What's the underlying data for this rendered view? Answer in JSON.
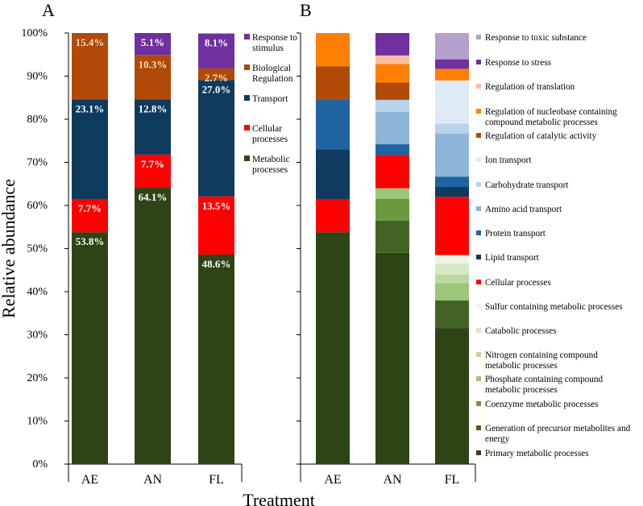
{
  "chart_data": [
    {
      "panel_label": "A",
      "type": "bar",
      "stacked": true,
      "categories": [
        "AE",
        "AN",
        "FL"
      ],
      "xlabel": "Treatment",
      "ylabel": "Relative abundance",
      "ylim": [
        0,
        100
      ],
      "yticks": [
        "0%",
        "10%",
        "20%",
        "30%",
        "40%",
        "50%",
        "60%",
        "70%",
        "80%",
        "90%",
        "100%"
      ],
      "legend_position": "right",
      "series": [
        {
          "name": "Metabolic processes",
          "color": "#2e4417",
          "values": [
            53.8,
            64.1,
            48.6
          ],
          "labels": [
            "53.8%",
            "64.1%",
            "48.6%"
          ]
        },
        {
          "name": "Cellular processes",
          "color": "#ff0000",
          "values": [
            7.7,
            7.7,
            13.5
          ],
          "labels": [
            "7.7%",
            "7.7%",
            "13.5%"
          ]
        },
        {
          "name": "Transport",
          "color": "#0e3a5e",
          "values": [
            23.1,
            12.8,
            27.0
          ],
          "labels": [
            "23.1%",
            "12.8%",
            "27.0%"
          ]
        },
        {
          "name": "Biological Regulation",
          "color": "#b04a06",
          "values": [
            15.4,
            10.3,
            2.7
          ],
          "labels": [
            "15.4%",
            "10.3%",
            "2.7%"
          ]
        },
        {
          "name": "Response to stimulus",
          "color": "#7030a0",
          "values": [
            0,
            5.1,
            8.1
          ],
          "labels": [
            "",
            "5.1%",
            "8.1%"
          ]
        }
      ],
      "legend": [
        {
          "name": "Response to stimulus",
          "color": "#7030a0"
        },
        {
          "name": "Biological Regulation",
          "color": "#b04a06"
        },
        {
          "name": "Transport",
          "color": "#0e3a5e"
        },
        {
          "name": "Cellular processes",
          "color": "#ff0000"
        },
        {
          "name": "Metabolic processes",
          "color": "#2e4417"
        }
      ]
    },
    {
      "panel_label": "B",
      "type": "bar",
      "stacked": true,
      "categories": [
        "AE",
        "AN",
        "FL"
      ],
      "xlabel": "",
      "ylabel": "",
      "ylim": [
        0,
        100
      ],
      "legend_position": "right",
      "series": [
        {
          "name": "Primary metabolic processes",
          "color": "#2e4417",
          "values": [
            53.8,
            49.0,
            31.5
          ]
        },
        {
          "name": "Generation of precursor metabolites and energy",
          "color": "#436324",
          "values": [
            0,
            7.5,
            6.5
          ]
        },
        {
          "name": "Coenzyme metabolic processes",
          "color": "#6a9a3c",
          "values": [
            0,
            5.0,
            0
          ]
        },
        {
          "name": "Phosphate containing compound metabolic processes",
          "color": "#9bc77a",
          "values": [
            0,
            2.5,
            4.0
          ]
        },
        {
          "name": "Nitrogen containing compound metabolic processes",
          "color": "#b9d9a0",
          "values": [
            0,
            0,
            2.0
          ]
        },
        {
          "name": "Catabolic processes",
          "color": "#d7e8c4",
          "values": [
            0,
            0,
            2.5
          ]
        },
        {
          "name": "Sulfur containing metabolic processes",
          "color": "#eef4e6",
          "values": [
            0,
            0,
            2.0
          ]
        },
        {
          "name": "Cellular processes",
          "color": "#ff0000",
          "values": [
            7.7,
            7.7,
            13.5
          ]
        },
        {
          "name": "Lipid transport",
          "color": "#103a60",
          "values": [
            11.5,
            0,
            2.3
          ]
        },
        {
          "name": "Protein transport",
          "color": "#1f64a0",
          "values": [
            11.6,
            2.5,
            2.4
          ]
        },
        {
          "name": "Amino acid transport",
          "color": "#8eb5da",
          "values": [
            0,
            7.5,
            10.0
          ]
        },
        {
          "name": "Carbohydrate transport",
          "color": "#b9d3ec",
          "values": [
            0,
            2.8,
            2.3
          ]
        },
        {
          "name": "Ion transport",
          "color": "#dfeaf7",
          "values": [
            0,
            0,
            10.0
          ]
        },
        {
          "name": "Regulation of catalytic activity",
          "color": "#b04a06",
          "values": [
            7.7,
            4.0,
            0
          ]
        },
        {
          "name": "Regulation of nucleobase containing compound metabolic processes",
          "color": "#ff7f00",
          "values": [
            7.7,
            4.3,
            2.7
          ]
        },
        {
          "name": "Regulation of translation",
          "color": "#fbbf9d",
          "values": [
            0,
            2.0,
            0
          ]
        },
        {
          "name": "Response to stress",
          "color": "#7030a0",
          "values": [
            0,
            5.2,
            2.2
          ]
        },
        {
          "name": "Response to toxic substance",
          "color": "#b4a1cb",
          "values": [
            0,
            0,
            6.1
          ]
        }
      ],
      "legend": [
        {
          "name": "Response to toxic substance",
          "color": "#b4a1cb"
        },
        {
          "name": "Response to stress",
          "color": "#7030a0"
        },
        {
          "name": "Regulation of translation",
          "color": "#fbbf9d"
        },
        {
          "name": "Regulation of nucleobase containing compound metabolic processes",
          "color": "#ff7f00"
        },
        {
          "name": "Regulation of catalytic activity",
          "color": "#b04a06"
        },
        {
          "name": "Ion transport",
          "color": "#dfeaf7"
        },
        {
          "name": "Carbohydrate transport",
          "color": "#b9d3ec"
        },
        {
          "name": "Amino acid transport",
          "color": "#8eb5da"
        },
        {
          "name": "Protein transport",
          "color": "#1f64a0"
        },
        {
          "name": "Lipid transport",
          "color": "#103a60"
        },
        {
          "name": "Cellular processes",
          "color": "#ff0000"
        },
        {
          "name": "Sulfur containing metabolic processes",
          "color": "#eef4e6"
        },
        {
          "name": "Catabolic processes",
          "color": "#d7e8c4"
        },
        {
          "name": "Nitrogen containing compound metabolic processes",
          "color": "#b9d9a0"
        },
        {
          "name": "Phosphate containing compound metabolic processes",
          "color": "#9bc77a"
        },
        {
          "name": "Coenzyme metabolic processes",
          "color": "#6a9a3c"
        },
        {
          "name": "Generation of precursor metabolites and energy",
          "color": "#436324"
        },
        {
          "name": "Primary metabolic processes",
          "color": "#2e4417"
        }
      ]
    }
  ]
}
